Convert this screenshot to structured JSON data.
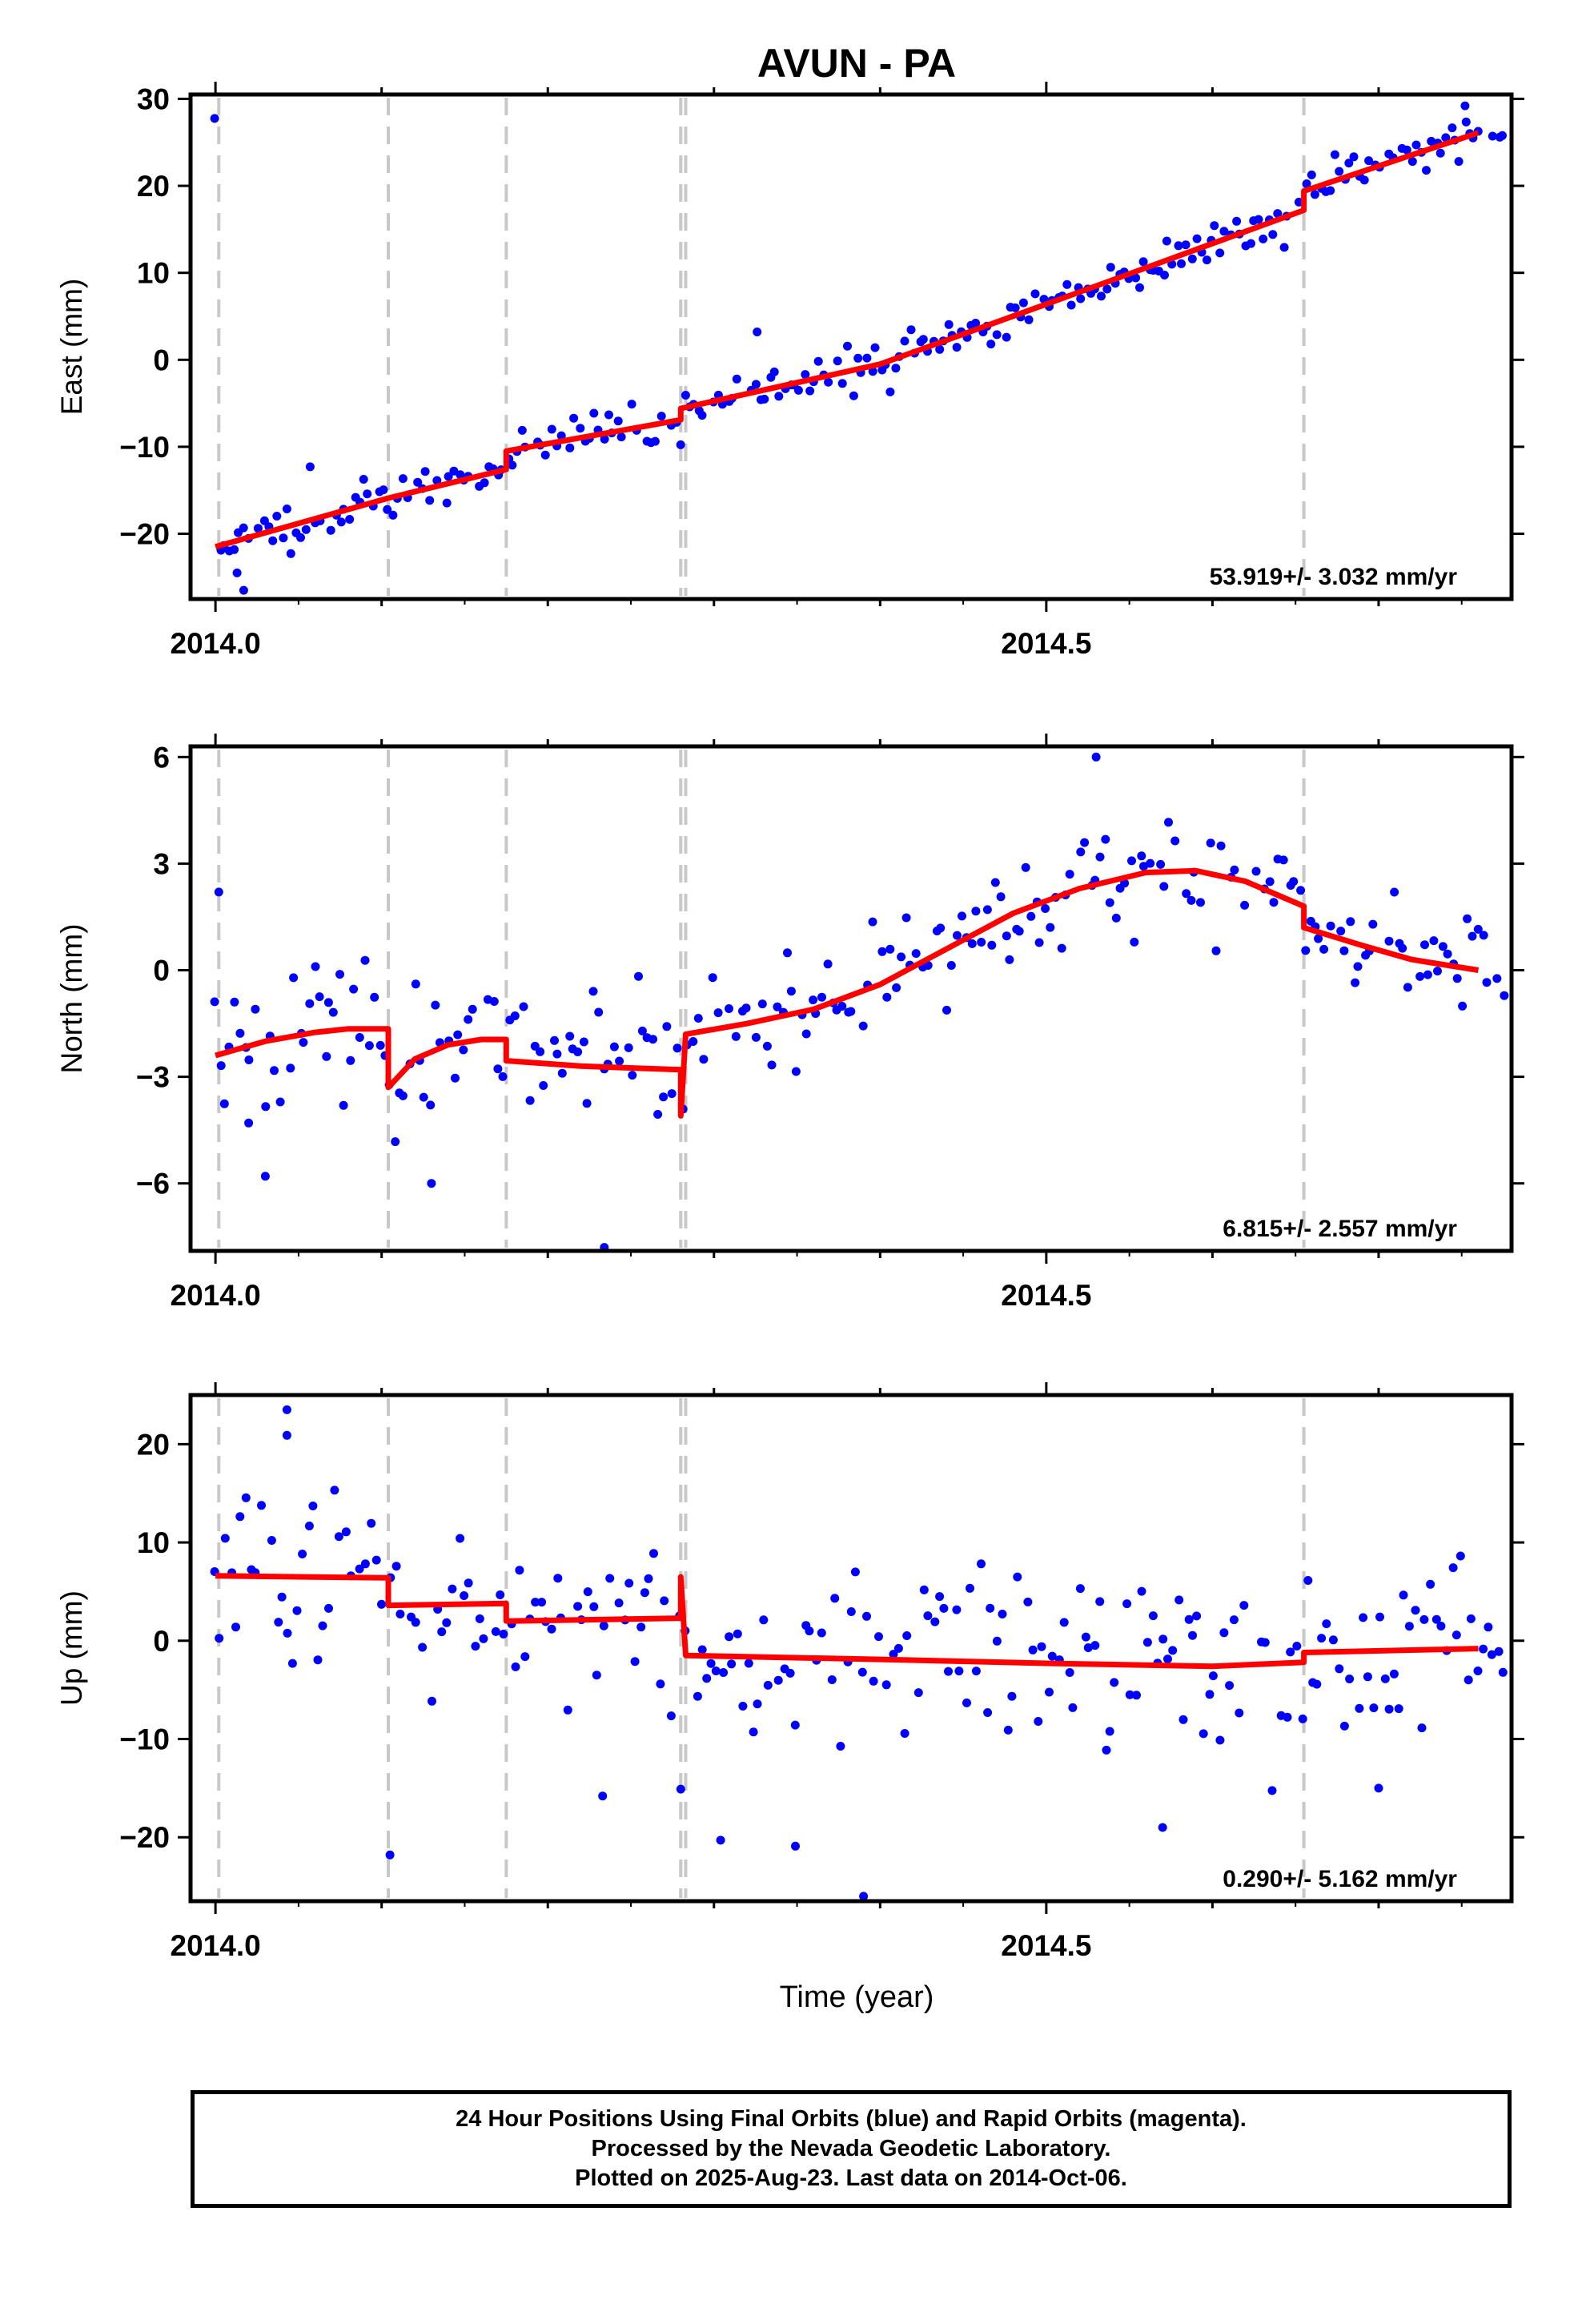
{
  "title": "AVUN - PA",
  "xlabel": "Time (year)",
  "footer": {
    "line1": "24 Hour Positions Using Final Orbits (blue) and Rapid Orbits (magenta).",
    "line2": "Processed by the Nevada Geodetic Laboratory.",
    "line3": "Plotted on 2025-Aug-23. Last data on 2014-Oct-06."
  },
  "colors": {
    "points": "#0000ff",
    "model": "#ff0000",
    "events": "#c8c8c8",
    "frame": "#000000"
  },
  "chart_data": [
    {
      "type": "scatter",
      "component": "east",
      "ylabel": "East (mm)",
      "rate_label": "53.919+/- 3.032 mm/yr",
      "xlim": [
        2013.985,
        2014.78
      ],
      "ylim": [
        -27.5,
        30.5
      ],
      "xticks_major": [
        2014.0,
        2014.5
      ],
      "xtick_labels": [
        "2014.0",
        "2014.5"
      ],
      "yticks": [
        -20,
        -10,
        0,
        10,
        20,
        30
      ],
      "ytick_labels": [
        "−20",
        "−10",
        "0",
        "10",
        "20",
        "30"
      ],
      "events": [
        2014.002,
        2014.104,
        2014.175,
        2014.28,
        2014.283,
        2014.655
      ],
      "model": [
        [
          2014.0,
          -21.5
        ],
        [
          2014.104,
          -15.9
        ],
        [
          2014.175,
          -12.6
        ],
        [
          2014.175,
          -10.5
        ],
        [
          2014.28,
          -6.9
        ],
        [
          2014.28,
          -5.6
        ],
        [
          2014.4,
          -0.5
        ],
        [
          2014.5,
          6.4
        ],
        [
          2014.655,
          17.2
        ],
        [
          2014.655,
          19.4
        ],
        [
          2014.76,
          26.1
        ]
      ],
      "trend": {
        "x0": 2014.0,
        "y0": -21.5,
        "x1": 2014.76,
        "y1": 26.1,
        "noise": 1.6,
        "seed": 11,
        "count": 270,
        "steps": [
          [
            2014.175,
            2.0
          ],
          [
            2014.28,
            1.3
          ],
          [
            2014.655,
            2.2
          ]
        ]
      },
      "outliers": [
        [
          2014.017,
          -26.5
        ],
        [
          2014.013,
          -24.5
        ],
        [
          2014.057,
          -12.3
        ],
        [
          2014.326,
          3.2
        ],
        [
          2014.752,
          29.2
        ]
      ]
    },
    {
      "type": "scatter",
      "component": "north",
      "ylabel": "North (mm)",
      "rate_label": "6.815+/- 2.557 mm/yr",
      "xlim": [
        2013.985,
        2014.78
      ],
      "ylim": [
        -7.9,
        6.3
      ],
      "xticks_major": [
        2014.0,
        2014.5
      ],
      "xtick_labels": [
        "2014.0",
        "2014.5"
      ],
      "yticks": [
        -6,
        -3,
        0,
        3,
        6
      ],
      "ytick_labels": [
        "−6",
        "−3",
        "0",
        "3",
        "6"
      ],
      "events": [
        2014.002,
        2014.104,
        2014.175,
        2014.28,
        2014.283,
        2014.655
      ],
      "model": [
        [
          2014.0,
          -2.4
        ],
        [
          2014.03,
          -2.0
        ],
        [
          2014.06,
          -1.75
        ],
        [
          2014.08,
          -1.65
        ],
        [
          2014.104,
          -1.65
        ],
        [
          2014.104,
          -3.3
        ],
        [
          2014.12,
          -2.5
        ],
        [
          2014.14,
          -2.1
        ],
        [
          2014.16,
          -1.95
        ],
        [
          2014.175,
          -1.95
        ],
        [
          2014.175,
          -2.55
        ],
        [
          2014.22,
          -2.7
        ],
        [
          2014.28,
          -2.8
        ],
        [
          2014.28,
          -4.1
        ],
        [
          2014.283,
          -1.8
        ],
        [
          2014.32,
          -1.5
        ],
        [
          2014.36,
          -1.1
        ],
        [
          2014.4,
          -0.4
        ],
        [
          2014.44,
          0.6
        ],
        [
          2014.48,
          1.6
        ],
        [
          2014.52,
          2.3
        ],
        [
          2014.56,
          2.75
        ],
        [
          2014.59,
          2.8
        ],
        [
          2014.62,
          2.5
        ],
        [
          2014.655,
          1.8
        ],
        [
          2014.655,
          1.2
        ],
        [
          2014.69,
          0.7
        ],
        [
          2014.72,
          0.3
        ],
        [
          2014.76,
          0.0
        ]
      ],
      "trend": {
        "noise": 1.05,
        "seed": 23,
        "count": 260
      },
      "outliers": [
        [
          2014.002,
          2.2
        ],
        [
          2014.53,
          6.0
        ],
        [
          2014.234,
          -7.8
        ],
        [
          2014.03,
          -5.8
        ],
        [
          2014.13,
          -6.0
        ],
        [
          2014.02,
          -4.3
        ]
      ]
    },
    {
      "type": "scatter",
      "component": "up",
      "ylabel": "Up (mm)",
      "rate_label": "0.290+/- 5.162 mm/yr",
      "xlim": [
        2013.985,
        2014.78
      ],
      "ylim": [
        -26.5,
        25.0
      ],
      "xticks_major": [
        2014.0,
        2014.5
      ],
      "xtick_labels": [
        "2014.0",
        "2014.5"
      ],
      "yticks": [
        -20,
        -10,
        0,
        10,
        20
      ],
      "ytick_labels": [
        "−20",
        "−10",
        "0",
        "10",
        "20"
      ],
      "events": [
        2014.002,
        2014.104,
        2014.175,
        2014.28,
        2014.283,
        2014.655
      ],
      "model": [
        [
          2014.0,
          6.6
        ],
        [
          2014.104,
          6.4
        ],
        [
          2014.104,
          3.6
        ],
        [
          2014.175,
          3.8
        ],
        [
          2014.175,
          2.0
        ],
        [
          2014.28,
          2.3
        ],
        [
          2014.28,
          6.5
        ],
        [
          2014.283,
          -1.5
        ],
        [
          2014.4,
          -1.9
        ],
        [
          2014.5,
          -2.3
        ],
        [
          2014.6,
          -2.6
        ],
        [
          2014.655,
          -2.2
        ],
        [
          2014.655,
          -1.2
        ],
        [
          2014.76,
          -0.8
        ]
      ],
      "trend": {
        "noise": 5.2,
        "seed": 37,
        "count": 250
      },
      "outliers": [
        [
          2014.043,
          23.5
        ],
        [
          2014.043,
          20.9
        ],
        [
          2014.105,
          -21.8
        ],
        [
          2014.304,
          -20.3
        ],
        [
          2014.349,
          -20.9
        ],
        [
          2014.39,
          -26.0
        ],
        [
          2014.57,
          -19.0
        ],
        [
          2014.7,
          -15.0
        ],
        [
          2014.233,
          -15.8
        ],
        [
          2014.28,
          -15.1
        ]
      ]
    }
  ]
}
